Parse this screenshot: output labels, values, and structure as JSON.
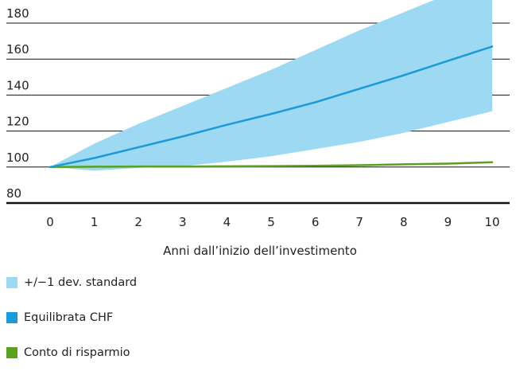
{
  "chart_data": {
    "type": "line",
    "xlabel": "Anni dall’inizio dell’investimento",
    "ylabel": "",
    "x": [
      0,
      1,
      2,
      3,
      4,
      5,
      6,
      7,
      8,
      9,
      10
    ],
    "xticks": [
      "0",
      "1",
      "2",
      "3",
      "4",
      "5",
      "6",
      "7",
      "8",
      "9",
      "10"
    ],
    "yticks": [
      "80",
      "100",
      "120",
      "140",
      "160",
      "180"
    ],
    "ylim": [
      80,
      180
    ],
    "xlim": [
      0,
      10
    ],
    "grid": "horizontal",
    "legend_position": "bottom",
    "band": {
      "name": "+/−1 dev. standard",
      "color": "#9dd9f3",
      "upper": [
        100,
        113,
        124,
        134,
        144,
        154,
        165,
        176,
        186,
        196,
        206
      ],
      "lower": [
        100,
        98,
        99.5,
        100.5,
        103,
        106,
        110,
        114,
        119,
        125,
        131
      ]
    },
    "series": [
      {
        "name": "Equilibrata CHF",
        "color": "#1a9ad9",
        "values": [
          100,
          105,
          111,
          117,
          123.5,
          129.5,
          136,
          143.5,
          151,
          159,
          167
        ]
      },
      {
        "name": "Conto di risparmio",
        "color": "#5aa11f",
        "values": [
          100,
          100.2,
          100.3,
          100.3,
          100.4,
          100.5,
          100.7,
          101,
          101.5,
          101.9,
          102.7
        ]
      }
    ]
  },
  "legend": {
    "items": [
      {
        "label": "+/−1 dev. standard",
        "color": "#9dd9f3"
      },
      {
        "label": "Equilibrata CHF",
        "color": "#1a9ad9"
      },
      {
        "label": "Conto di risparmio",
        "color": "#5aa11f"
      }
    ]
  }
}
